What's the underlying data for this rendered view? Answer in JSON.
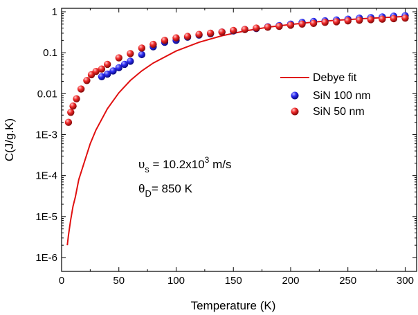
{
  "chart_data": {
    "type": "scatter",
    "xlabel": "Temperature (K)",
    "ylabel": "C(J/g.K)",
    "xlim": [
      0,
      310
    ],
    "ylim": [
      1e-06,
      1.3
    ],
    "yscale": "log",
    "grid": false,
    "legend_position": "right",
    "x_ticks": [
      0,
      50,
      100,
      150,
      200,
      250,
      300
    ],
    "x_tick_labels": [
      "0",
      "50",
      "100",
      "150",
      "200",
      "250",
      "300"
    ],
    "y_ticks": [
      1e-06,
      1e-05,
      0.0001,
      0.001,
      0.01,
      0.1,
      1
    ],
    "y_tick_labels": [
      "1E-6",
      "1E-5",
      "1E-4",
      "1E-3",
      "0.01",
      "0.1",
      "1"
    ],
    "series": [
      {
        "name": "Debye fit",
        "kind": "line",
        "color": "#e01010",
        "x": [
          5,
          6,
          7,
          8,
          10,
          12,
          15,
          20,
          25,
          30,
          40,
          50,
          60,
          70,
          80,
          100,
          120,
          140,
          160,
          180,
          200,
          220,
          240,
          260,
          280,
          300
        ],
        "y": [
          2e-06,
          3.5e-06,
          5.5e-06,
          8.5e-06,
          1.8e-05,
          3e-05,
          8e-05,
          0.00022,
          0.0006,
          0.0013,
          0.0043,
          0.0105,
          0.021,
          0.036,
          0.056,
          0.11,
          0.18,
          0.26,
          0.34,
          0.42,
          0.49,
          0.56,
          0.62,
          0.67,
          0.72,
          0.77
        ]
      },
      {
        "name": "SiN 100 nm",
        "kind": "scatter",
        "color": "#1a1ae0",
        "x": [
          35,
          40,
          45,
          50,
          55,
          60,
          70,
          80,
          90,
          100,
          110,
          120,
          130,
          140,
          150,
          160,
          170,
          180,
          190,
          200,
          210,
          220,
          230,
          240,
          250,
          260,
          270,
          280,
          290,
          300
        ],
        "y": [
          0.026,
          0.03,
          0.036,
          0.043,
          0.052,
          0.062,
          0.09,
          0.14,
          0.18,
          0.2,
          0.24,
          0.27,
          0.29,
          0.32,
          0.34,
          0.37,
          0.39,
          0.43,
          0.46,
          0.5,
          0.55,
          0.58,
          0.6,
          0.63,
          0.66,
          0.7,
          0.72,
          0.75,
          0.78,
          0.8
        ]
      },
      {
        "name": "SiN 50 nm",
        "kind": "scatter",
        "color": "#e01010",
        "x": [
          6,
          8,
          10,
          13,
          17,
          22,
          26,
          30,
          35,
          40,
          50,
          60,
          70,
          80,
          90,
          100,
          110,
          120,
          130,
          140,
          150,
          160,
          170,
          180,
          190,
          200,
          210,
          220,
          230,
          240,
          250,
          260,
          270,
          280,
          290,
          300
        ],
        "y": [
          0.002,
          0.0035,
          0.005,
          0.0075,
          0.013,
          0.021,
          0.029,
          0.035,
          0.04,
          0.052,
          0.075,
          0.095,
          0.13,
          0.16,
          0.2,
          0.23,
          0.25,
          0.28,
          0.3,
          0.32,
          0.35,
          0.37,
          0.4,
          0.42,
          0.44,
          0.47,
          0.5,
          0.52,
          0.55,
          0.57,
          0.6,
          0.62,
          0.64,
          0.66,
          0.68,
          0.7
        ]
      }
    ],
    "annotations": {
      "vs_symbol": "υ",
      "vs_subscript": "s",
      "vs_text": " = 10.2x10",
      "vs_superscript": "3",
      "vs_unit": " m/s",
      "theta_symbol": "θ",
      "theta_subscript": "D",
      "theta_text": "= 850 K"
    }
  }
}
